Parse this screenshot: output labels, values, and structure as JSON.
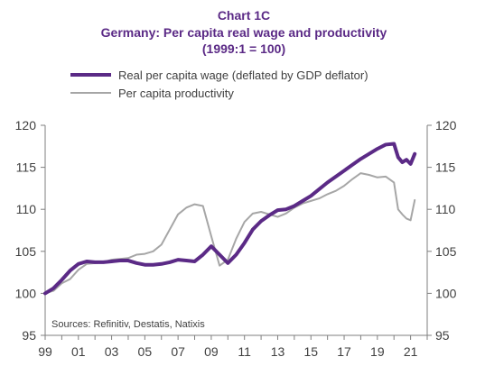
{
  "chart_data": {
    "type": "line",
    "title": "Chart 1C",
    "subtitle": "Germany: Per capita real wage and productivity",
    "subtitle2": "(1999:1 = 100)",
    "source": "Sources: Refinitiv, Destatis, Natixis",
    "xlim": [
      1999.0,
      2022.0
    ],
    "ylim": [
      95,
      120
    ],
    "x_ticks": [
      1999,
      2001,
      2003,
      2005,
      2007,
      2009,
      2011,
      2013,
      2015,
      2017,
      2019,
      2021
    ],
    "x_tick_labels": [
      "99",
      "01",
      "03",
      "05",
      "07",
      "09",
      "11",
      "13",
      "15",
      "17",
      "19",
      "21"
    ],
    "y_ticks": [
      95,
      100,
      105,
      110,
      115,
      120
    ],
    "y_tick_labels": [
      "95",
      "100",
      "105",
      "110",
      "115",
      "120"
    ],
    "grid": false,
    "legend_position": "top-left",
    "colors": {
      "real_wage": "#5b2a86",
      "productivity": "#a6a6a6",
      "axis": "#7f7f7f",
      "title": "#5b2a86",
      "text": "#404040"
    },
    "series": [
      {
        "name": "Real per capita wage (deflated by GDP deflator)",
        "key": "real_wage",
        "points": [
          [
            1999.0,
            100.0
          ],
          [
            1999.5,
            100.6
          ],
          [
            2000.0,
            101.6
          ],
          [
            2000.5,
            102.7
          ],
          [
            2001.0,
            103.5
          ],
          [
            2001.5,
            103.8
          ],
          [
            2002.0,
            103.7
          ],
          [
            2002.5,
            103.7
          ],
          [
            2003.0,
            103.8
          ],
          [
            2003.5,
            103.9
          ],
          [
            2004.0,
            103.9
          ],
          [
            2004.5,
            103.6
          ],
          [
            2005.0,
            103.4
          ],
          [
            2005.5,
            103.4
          ],
          [
            2006.0,
            103.5
          ],
          [
            2006.5,
            103.7
          ],
          [
            2007.0,
            104.0
          ],
          [
            2007.5,
            103.9
          ],
          [
            2008.0,
            103.8
          ],
          [
            2008.5,
            104.6
          ],
          [
            2009.0,
            105.6
          ],
          [
            2009.5,
            104.6
          ],
          [
            2010.0,
            103.6
          ],
          [
            2010.5,
            104.6
          ],
          [
            2011.0,
            106.0
          ],
          [
            2011.5,
            107.6
          ],
          [
            2012.0,
            108.6
          ],
          [
            2012.5,
            109.3
          ],
          [
            2013.0,
            109.9
          ],
          [
            2013.5,
            110.0
          ],
          [
            2014.0,
            110.4
          ],
          [
            2014.5,
            111.0
          ],
          [
            2015.0,
            111.6
          ],
          [
            2015.5,
            112.4
          ],
          [
            2016.0,
            113.2
          ],
          [
            2016.5,
            113.9
          ],
          [
            2017.0,
            114.6
          ],
          [
            2017.5,
            115.3
          ],
          [
            2018.0,
            116.0
          ],
          [
            2018.5,
            116.6
          ],
          [
            2019.0,
            117.2
          ],
          [
            2019.5,
            117.7
          ],
          [
            2020.0,
            117.8
          ],
          [
            2020.25,
            116.2
          ],
          [
            2020.5,
            115.6
          ],
          [
            2020.75,
            115.9
          ],
          [
            2021.0,
            115.4
          ],
          [
            2021.25,
            116.6
          ]
        ]
      },
      {
        "name": "Per capita productivity",
        "key": "productivity",
        "points": [
          [
            1999.0,
            100.0
          ],
          [
            1999.5,
            100.3
          ],
          [
            2000.0,
            101.2
          ],
          [
            2000.5,
            101.7
          ],
          [
            2001.0,
            102.8
          ],
          [
            2001.5,
            103.5
          ],
          [
            2002.0,
            103.6
          ],
          [
            2002.5,
            103.7
          ],
          [
            2003.0,
            104.0
          ],
          [
            2003.5,
            104.1
          ],
          [
            2004.0,
            104.2
          ],
          [
            2004.5,
            104.6
          ],
          [
            2005.0,
            104.7
          ],
          [
            2005.5,
            105.0
          ],
          [
            2006.0,
            105.8
          ],
          [
            2006.5,
            107.6
          ],
          [
            2007.0,
            109.4
          ],
          [
            2007.5,
            110.2
          ],
          [
            2008.0,
            110.6
          ],
          [
            2008.5,
            110.4
          ],
          [
            2009.0,
            106.8
          ],
          [
            2009.5,
            103.3
          ],
          [
            2010.0,
            104.0
          ],
          [
            2010.5,
            106.5
          ],
          [
            2011.0,
            108.5
          ],
          [
            2011.5,
            109.5
          ],
          [
            2012.0,
            109.7
          ],
          [
            2012.5,
            109.4
          ],
          [
            2013.0,
            109.1
          ],
          [
            2013.5,
            109.5
          ],
          [
            2014.0,
            110.2
          ],
          [
            2014.5,
            110.7
          ],
          [
            2015.0,
            111.0
          ],
          [
            2015.5,
            111.3
          ],
          [
            2016.0,
            111.8
          ],
          [
            2016.5,
            112.2
          ],
          [
            2017.0,
            112.8
          ],
          [
            2017.5,
            113.6
          ],
          [
            2018.0,
            114.3
          ],
          [
            2018.5,
            114.1
          ],
          [
            2019.0,
            113.8
          ],
          [
            2019.5,
            113.9
          ],
          [
            2020.0,
            113.2
          ],
          [
            2020.25,
            110.0
          ],
          [
            2020.5,
            109.4
          ],
          [
            2020.75,
            108.9
          ],
          [
            2021.0,
            108.7
          ],
          [
            2021.25,
            111.1
          ]
        ]
      }
    ]
  }
}
